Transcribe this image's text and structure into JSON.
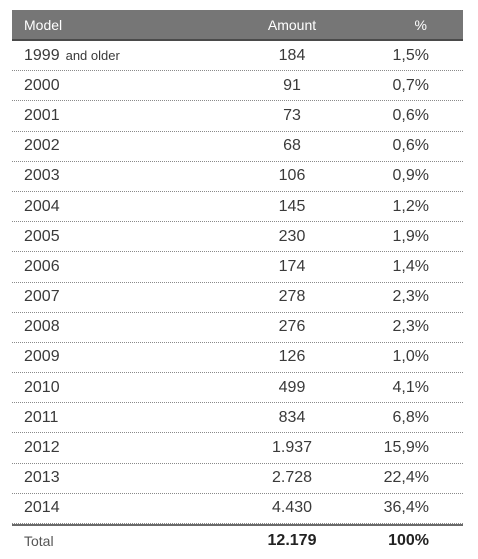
{
  "headers": {
    "model": "Model",
    "amount": "Amount",
    "pct": "%"
  },
  "rows": [
    {
      "model": "1999",
      "suffix": "and older",
      "amount": "184",
      "pct": "1,5%"
    },
    {
      "model": "2000",
      "amount": "91",
      "pct": "0,7%"
    },
    {
      "model": "2001",
      "amount": "73",
      "pct": "0,6%"
    },
    {
      "model": "2002",
      "amount": "68",
      "pct": "0,6%"
    },
    {
      "model": "2003",
      "amount": "106",
      "pct": "0,9%"
    },
    {
      "model": "2004",
      "amount": "145",
      "pct": "1,2%"
    },
    {
      "model": "2005",
      "amount": "230",
      "pct": "1,9%"
    },
    {
      "model": "2006",
      "amount": "174",
      "pct": "1,4%"
    },
    {
      "model": "2007",
      "amount": "278",
      "pct": "2,3%"
    },
    {
      "model": "2008",
      "amount": "276",
      "pct": "2,3%"
    },
    {
      "model": "2009",
      "amount": "126",
      "pct": "1,0%"
    },
    {
      "model": "2010",
      "amount": "499",
      "pct": "4,1%"
    },
    {
      "model": "2011",
      "amount": "834",
      "pct": "6,8%"
    },
    {
      "model": "2012",
      "amount": "1.937",
      "pct": "15,9%"
    },
    {
      "model": "2013",
      "amount": "2.728",
      "pct": "22,4%"
    },
    {
      "model": "2014",
      "amount": "4.430",
      "pct": "36,4%"
    }
  ],
  "total": {
    "label": "Total",
    "amount": "12.179",
    "pct": "100%"
  },
  "colors": {
    "header_bg": "#767676",
    "header_text": "#ffffff",
    "text": "#3a3a3a"
  }
}
